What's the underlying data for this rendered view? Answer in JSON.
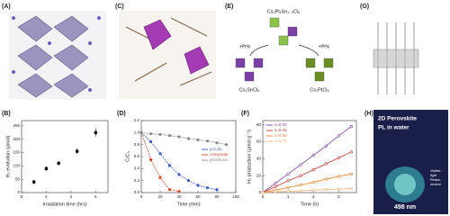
{
  "panel_labels": [
    "(A)",
    "(C)",
    "(E)",
    "(G)",
    "(B)",
    "(D)",
    "(F)",
    "(H)"
  ],
  "diagram_e": {
    "top": "Cs₂PtₓSn₁₋ₓCl₆",
    "left_arrow": "+Pt%",
    "right_arrow": "+Pt%",
    "left": "Cs₂SnCl₆",
    "right": "Cs₂PtCl₆"
  },
  "photo_h": {
    "line1": "2D Perovskite",
    "line2": "PL in water",
    "wavelength": "498 nm",
    "note1": "Visible-",
    "note2": "light",
    "note3": "Redox-",
    "note4": "neutral"
  },
  "chart_data": [
    {
      "type": "scatter",
      "xlabel": "Irradiation time (hrs)",
      "ylabel": "H₂ evolution (μmol)",
      "x": [
        1,
        2,
        3,
        4.5,
        6
      ],
      "values": [
        40,
        90,
        110,
        155,
        225
      ],
      "errors": [
        8,
        8,
        8,
        10,
        15
      ],
      "color": "#000000",
      "xlim": [
        0,
        7
      ],
      "xticks": [
        0,
        2,
        4,
        6
      ],
      "ylim": [
        0,
        270
      ],
      "yticks": [
        0,
        50,
        100,
        150,
        200,
        250
      ]
    },
    {
      "type": "line",
      "xlabel": "Time (min)",
      "ylabel": "C/C₀",
      "x": [
        0,
        10,
        20,
        30,
        40,
        50,
        60,
        70,
        80,
        90
      ],
      "series": [
        {
          "name": "g-C₃N₄",
          "color": "#3b5bc4",
          "values": [
            1.0,
            0.85,
            0.65,
            0.45,
            0.3,
            0.2,
            0.12,
            0.08,
            0.05,
            null
          ]
        },
        {
          "name": "composite",
          "color": "#d9452b",
          "values": [
            1.0,
            0.55,
            0.25,
            0.05,
            0.02,
            null,
            null,
            null,
            null,
            null
          ]
        },
        {
          "name": "photolysis",
          "color": "#888888",
          "values": [
            1.0,
            0.98,
            0.97,
            0.95,
            0.93,
            0.9,
            0.88,
            0.86,
            0.83,
            0.8
          ]
        }
      ],
      "xlim": [
        0,
        100
      ],
      "xticks": [
        0,
        20,
        40,
        60,
        80,
        100
      ],
      "ylim": [
        0,
        1.2
      ],
      "yticks": [
        {
          "value": 0,
          "label": "0.0"
        },
        0.2,
        0.4,
        0.6,
        0.8,
        {
          "value": 1,
          "label": "1.0"
        },
        1.2
      ],
      "legend": "center right"
    },
    {
      "type": "line",
      "xlabel": "Time (h)",
      "ylabel": "H₂ production (μmol g⁻¹)",
      "x": [
        0,
        0.5,
        1,
        1.5,
        2,
        2.5,
        3,
        3.5
      ],
      "series": [
        {
          "name": "x=0.05",
          "color": "#7b3fa6",
          "values": [
            0,
            11,
            22,
            33,
            44,
            55,
            67,
            78
          ]
        },
        {
          "name": "x=0.25",
          "color": "#c0392b",
          "values": [
            0,
            7,
            14,
            20,
            27,
            34,
            41,
            48
          ]
        },
        {
          "name": "x=0.50",
          "color": "#e67e22",
          "values": [
            0,
            3,
            6,
            9,
            12,
            16,
            19,
            22
          ]
        },
        {
          "name": "x=0.75",
          "color": "#f0b27a",
          "values": [
            0,
            1,
            1.5,
            2,
            3,
            3.5,
            4,
            5
          ]
        }
      ],
      "xlim": [
        0,
        3.7
      ],
      "xticks": [
        0,
        1,
        2,
        3
      ],
      "ylim": [
        0,
        85
      ],
      "yticks": [
        0,
        20,
        40,
        60,
        80
      ],
      "legend": "upper left"
    }
  ]
}
